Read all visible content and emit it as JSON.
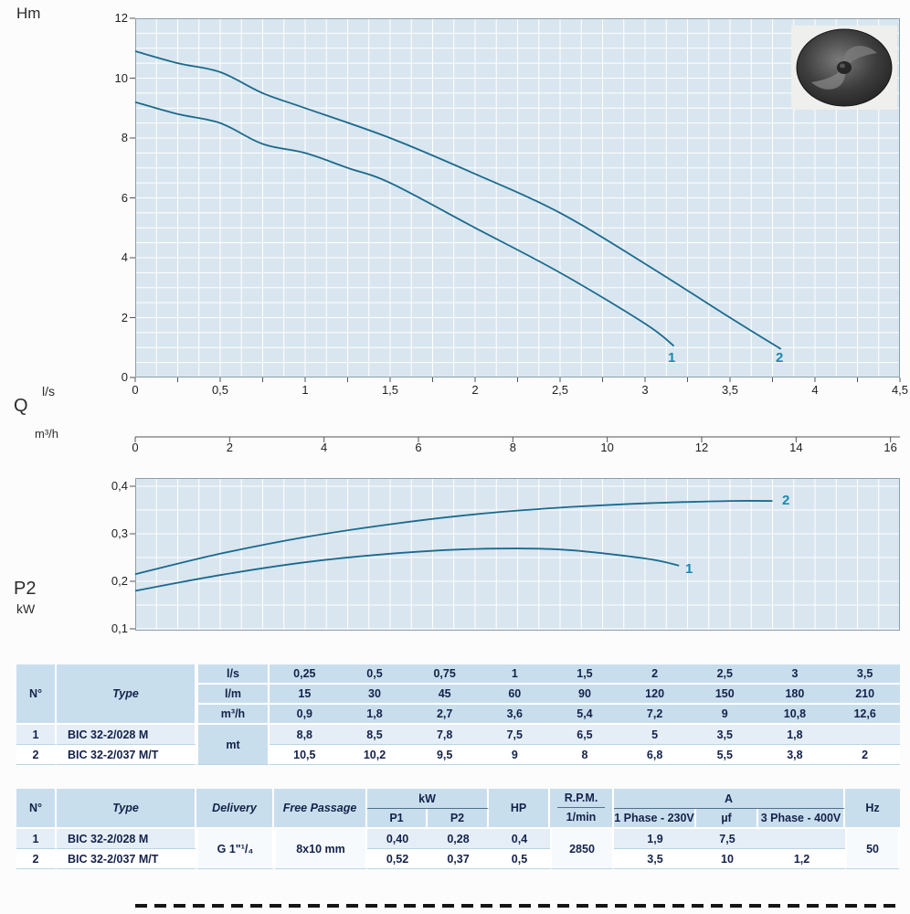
{
  "page": {
    "hm_label": "Hm",
    "ls_label": "l/s",
    "q_label": "Q",
    "m3h_label": "m³/h",
    "p2_label": "P2",
    "kw_label": "kW"
  },
  "colors": {
    "plot_bg": "#d9e6ef",
    "curve": "#1b6a8d",
    "curve_label": "#1e87ad",
    "header_bg": "#c9deed",
    "text": "#14224a"
  },
  "chart_data": [
    {
      "type": "line",
      "title": "Head vs flow",
      "ylabel": "Hm",
      "xlabel": "Q",
      "x_units": [
        "l/s",
        "m³/h"
      ],
      "xlim_ls": [
        0,
        4.5
      ],
      "ylim": [
        0,
        12
      ],
      "grid": true,
      "y_ticks": [
        "0",
        "2",
        "4",
        "6",
        "8",
        "10",
        "12"
      ],
      "x_ticks_ls": [
        "0",
        "0,5",
        "1",
        "1,5",
        "2",
        "2,5",
        "3",
        "3,5",
        "4",
        "4,5"
      ],
      "x_ticks_m3h": [
        "0",
        "2",
        "4",
        "6",
        "8",
        "10",
        "12",
        "14",
        "16"
      ],
      "series": [
        {
          "name": "1",
          "x": [
            0,
            0.25,
            0.5,
            0.75,
            1,
            1.25,
            1.5,
            2,
            2.5,
            3,
            3.17
          ],
          "y": [
            9.2,
            8.8,
            8.5,
            7.8,
            7.5,
            7.0,
            6.5,
            5,
            3.5,
            1.8,
            1.05
          ]
        },
        {
          "name": "2",
          "x": [
            0,
            0.25,
            0.5,
            0.75,
            1,
            1.5,
            2,
            2.5,
            3,
            3.5,
            3.8
          ],
          "y": [
            10.9,
            10.5,
            10.2,
            9.5,
            9,
            8,
            6.8,
            5.5,
            3.8,
            2,
            0.95
          ]
        }
      ]
    },
    {
      "type": "line",
      "title": "Power P2 vs flow",
      "ylabel": "P2 kW",
      "xlim_ls": [
        0,
        4.5
      ],
      "ylim": [
        0.1,
        0.4
      ],
      "grid": true,
      "y_ticks": [
        "0,1",
        "0,2",
        "0,3",
        "0,4"
      ],
      "series": [
        {
          "name": "1",
          "x": [
            0,
            0.5,
            1,
            1.5,
            2,
            2.5,
            3,
            3.2
          ],
          "y": [
            0.18,
            0.213,
            0.24,
            0.258,
            0.268,
            0.267,
            0.248,
            0.233
          ]
        },
        {
          "name": "2",
          "x": [
            0,
            0.5,
            1,
            1.5,
            2,
            2.5,
            3,
            3.5,
            3.75
          ],
          "y": [
            0.215,
            0.258,
            0.293,
            0.32,
            0.341,
            0.355,
            0.364,
            0.369,
            0.369
          ]
        }
      ]
    }
  ],
  "table1": {
    "n_label": "N°",
    "type_label": "Type",
    "mt_label": "mt",
    "header_rows": [
      {
        "unit": "l/s",
        "values": [
          "0,25",
          "0,5",
          "0,75",
          "1",
          "1,5",
          "2",
          "2,5",
          "3",
          "3,5"
        ]
      },
      {
        "unit": "l/m",
        "values": [
          "15",
          "30",
          "45",
          "60",
          "90",
          "120",
          "150",
          "180",
          "210"
        ]
      },
      {
        "unit": "m³/h",
        "values": [
          "0,9",
          "1,8",
          "2,7",
          "3,6",
          "5,4",
          "7,2",
          "9",
          "10,8",
          "12,6"
        ]
      }
    ],
    "rows": [
      {
        "n": "1",
        "type": "BIC 32-2/028 M",
        "values": [
          "8,8",
          "8,5",
          "7,8",
          "7,5",
          "6,5",
          "5",
          "3,5",
          "1,8",
          ""
        ]
      },
      {
        "n": "2",
        "type": "BIC 32-2/037 M/T",
        "values": [
          "10,5",
          "10,2",
          "9,5",
          "9",
          "8",
          "6,8",
          "5,5",
          "3,8",
          "2"
        ]
      }
    ]
  },
  "table2": {
    "headers": {
      "n": "N°",
      "type": "Type",
      "delivery": "Delivery",
      "free_passage": "Free Passage",
      "kw": "kW",
      "p1": "P1",
      "p2": "P2",
      "hp": "HP",
      "rpm": "R.P.M.",
      "rpm_unit": "1/min",
      "a": "A",
      "phase1": "1 Phase - 230V",
      "uf": "µf",
      "phase3": "3 Phase - 400V",
      "hz": "Hz"
    },
    "delivery_value": "G 1\"¹/₄",
    "free_passage_value": "8x10 mm",
    "rpm_value": "2850",
    "hz_value": "50",
    "rows": [
      {
        "n": "1",
        "type": "BIC 32-2/028 M",
        "p1": "0,40",
        "p2": "0,28",
        "hp": "0,4",
        "a230": "1,9",
        "uf": "7,5",
        "a400": ""
      },
      {
        "n": "2",
        "type": "BIC 32-2/037 M/T",
        "p1": "0,52",
        "p2": "0,37",
        "hp": "0,5",
        "a230": "3,5",
        "uf": "10",
        "a400": "1,2"
      }
    ]
  }
}
